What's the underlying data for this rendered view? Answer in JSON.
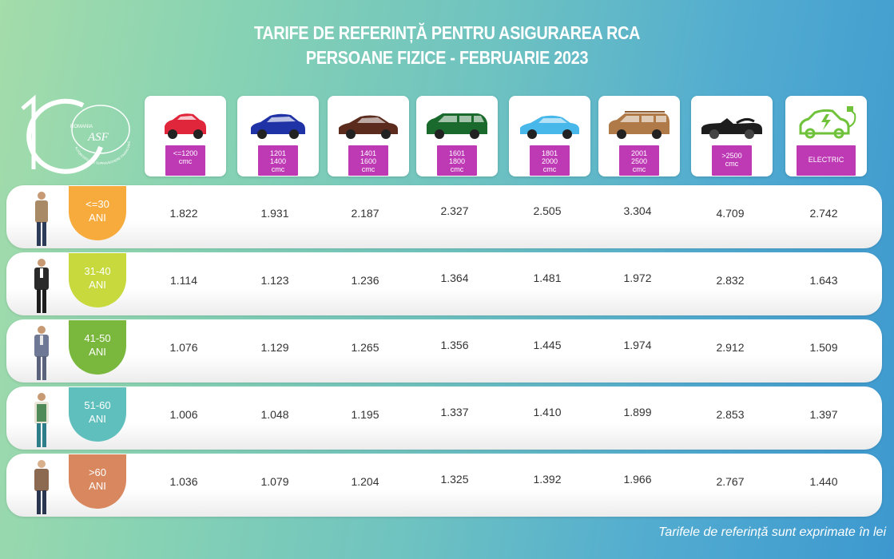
{
  "title": {
    "line1": "TARIFE DE REFERINȚĂ PENTRU ASIGURAREA RCA",
    "line2": "PERSOANE FIZICE - FEBRUARIE 2023"
  },
  "logo": {
    "number": "10",
    "country": "ROMANIA",
    "acronym": "ASF",
    "arc_text": "AUTORITATEA DE SUPRAVEGHERE FINANCIARĂ"
  },
  "categories": [
    {
      "line1": "<=1200",
      "line2": "cmc",
      "color": "#e0263a"
    },
    {
      "line1": "1201",
      "line2": "1400",
      "line3": "cmc",
      "color": "#2033a6"
    },
    {
      "line1": "1401",
      "line2": "1600",
      "line3": "cmc",
      "color": "#5b2b1e"
    },
    {
      "line1": "1601",
      "line2": "1800",
      "line3": "cmc",
      "color": "#1b6a2d"
    },
    {
      "line1": "1801",
      "line2": "2000",
      "line3": "cmc",
      "color": "#48b7ea"
    },
    {
      "line1": "2001",
      "line2": "2500",
      "line3": "cmc",
      "color": "#b07a48"
    },
    {
      "line1": ">2500",
      "line2": "cmc",
      "color": "#1d1d1d"
    },
    {
      "line1": "ELECTRIC",
      "color": "#6fc23a"
    }
  ],
  "rows": [
    {
      "age1": "<=30",
      "age2": "ANI",
      "badge_color": "#f7ab3c",
      "values": [
        "1.822",
        "1.931",
        "2.187",
        "2.327",
        "2.505",
        "3.304",
        "4.709",
        "2.742"
      ]
    },
    {
      "age1": "31-40",
      "age2": "ANI",
      "badge_color": "#c7d93c",
      "values": [
        "1.114",
        "1.123",
        "1.236",
        "1.364",
        "1.481",
        "1.972",
        "2.832",
        "1.643"
      ]
    },
    {
      "age1": "41-50",
      "age2": "ANI",
      "badge_color": "#79b83d",
      "values": [
        "1.076",
        "1.129",
        "1.265",
        "1.356",
        "1.445",
        "1.974",
        "2.912",
        "1.509"
      ]
    },
    {
      "age1": "51-60",
      "age2": "ANI",
      "badge_color": "#5fbfbd",
      "values": [
        "1.006",
        "1.048",
        "1.195",
        "1.337",
        "1.410",
        "1.899",
        "2.853",
        "1.397"
      ]
    },
    {
      "age1": ">60",
      "age2": "ANI",
      "badge_color": "#d8875e",
      "values": [
        "1.036",
        "1.079",
        "1.204",
        "1.325",
        "1.392",
        "1.966",
        "2.767",
        "1.440"
      ]
    }
  ],
  "footnote": "Tarifele de referință sunt exprimate în lei",
  "colors": {
    "label_bg": "#be3ab5"
  }
}
